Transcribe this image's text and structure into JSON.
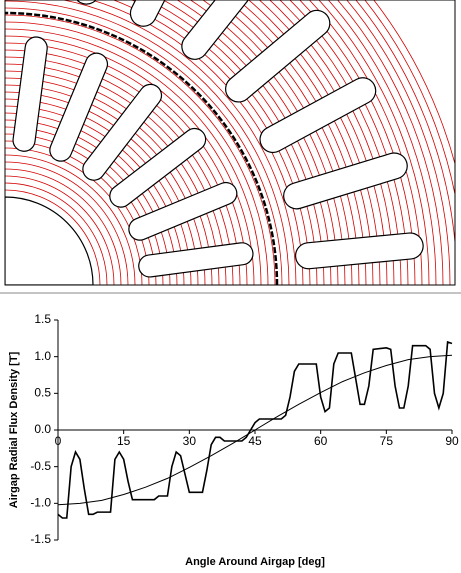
{
  "chart_data": {
    "type": "line",
    "y_label": "Airgap Radial Flux Density [T]",
    "x_label": "Angle Around Airgap [deg]",
    "xlim": [
      0,
      90
    ],
    "xticks": [
      0,
      15,
      30,
      45,
      60,
      75,
      90
    ],
    "ylim": [
      -1.5,
      1.5
    ],
    "yticks": [
      -1.5,
      -0.5,
      {
        "value": -1,
        "label": "-1.0"
      },
      {
        "value": 0,
        "label": "0.0"
      },
      0.5,
      {
        "value": 1,
        "label": "1.0"
      },
      1.5
    ],
    "grid": false,
    "series": [
      {
        "color": "#000000",
        "x": [
          0,
          1,
          2,
          3,
          4,
          5,
          6,
          7,
          8,
          9,
          12,
          13,
          14,
          15,
          16,
          17,
          18,
          21,
          22,
          23,
          25,
          26,
          27,
          28,
          29,
          30,
          31,
          33,
          34,
          35,
          36,
          37,
          38,
          40,
          42,
          43,
          44,
          45,
          46,
          47,
          49,
          51,
          52,
          53,
          54,
          55,
          56,
          58,
          59,
          60,
          61,
          62,
          63,
          64,
          65,
          67,
          68,
          69,
          70,
          71,
          72,
          75,
          76,
          77,
          78,
          79,
          80,
          81,
          84,
          85,
          86,
          87,
          88,
          89,
          90
        ],
        "values": [
          -1.15,
          -1.2,
          -1.2,
          -0.5,
          -0.3,
          -0.4,
          -0.8,
          -1.15,
          -1.15,
          -1.12,
          -1.12,
          -0.4,
          -0.3,
          -0.4,
          -0.7,
          -0.95,
          -0.95,
          -0.95,
          -0.95,
          -0.9,
          -0.9,
          -0.5,
          -0.3,
          -0.35,
          -0.6,
          -0.85,
          -0.85,
          -0.85,
          -0.55,
          -0.2,
          -0.1,
          -0.1,
          -0.15,
          -0.15,
          -0.15,
          -0.1,
          0.0,
          0.1,
          0.15,
          0.15,
          0.15,
          0.15,
          0.2,
          0.45,
          0.8,
          0.9,
          0.9,
          0.9,
          0.9,
          0.45,
          0.25,
          0.3,
          0.9,
          1.05,
          1.05,
          1.05,
          0.7,
          0.35,
          0.35,
          0.6,
          1.1,
          1.12,
          1.1,
          0.6,
          0.3,
          0.3,
          0.6,
          1.15,
          1.15,
          1.1,
          0.5,
          0.3,
          0.5,
          1.2,
          1.18
        ]
      },
      {
        "color": "#000000",
        "x": [
          0,
          5,
          10,
          15,
          20,
          25,
          30,
          35,
          40,
          45,
          50,
          55,
          60,
          65,
          70,
          75,
          80,
          85,
          90
        ],
        "values": [
          -1.02,
          -1.0,
          -0.96,
          -0.88,
          -0.78,
          -0.66,
          -0.51,
          -0.35,
          -0.18,
          0,
          0.18,
          0.35,
          0.51,
          0.66,
          0.78,
          0.88,
          0.96,
          1.0,
          1.02
        ]
      }
    ]
  }
}
